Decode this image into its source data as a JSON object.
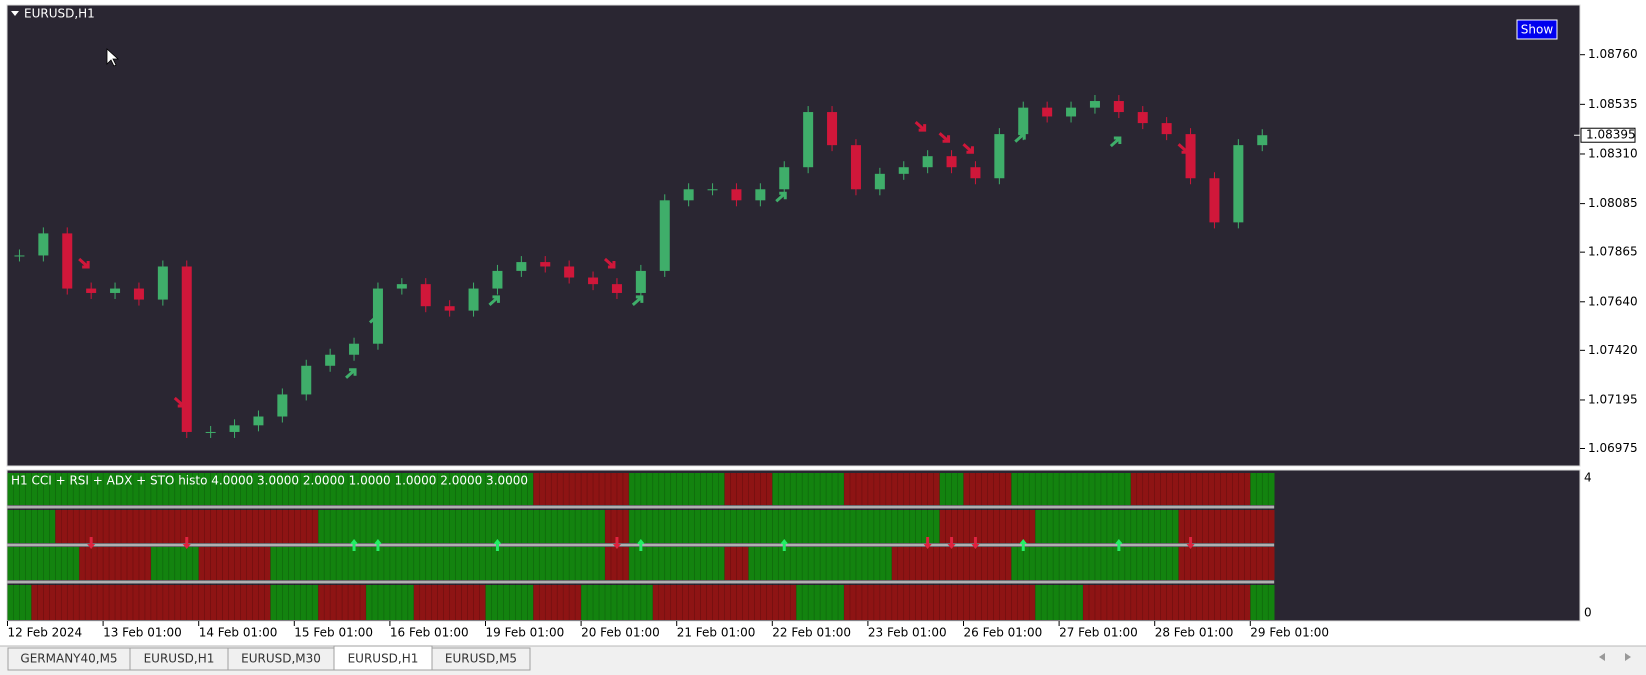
{
  "window": {
    "symbol_title": "EURUSD,H1",
    "button": "Show"
  },
  "price_axis": {
    "ticks": [
      {
        "value": 1.0876,
        "label": "1.08760"
      },
      1.08535,
      {
        "value": 1.0831,
        "label": "1.08310"
      },
      1.08085,
      1.07865,
      {
        "value": 1.0764,
        "label": "1.07640"
      },
      {
        "value": 1.0742,
        "label": "1.07420"
      },
      1.07195,
      1.06975
    ],
    "current": 1.08395
  },
  "candles": {
    "up_color": "#3fae6a",
    "down_color": "#d0173a",
    "closes": [
      1.0785,
      1.0795,
      1.077,
      1.0768,
      1.077,
      1.0765,
      1.078,
      1.0705,
      1.0705,
      1.0708,
      1.0712,
      1.0722,
      1.0735,
      1.074,
      1.0745,
      1.077,
      1.0772,
      1.0762,
      1.076,
      1.077,
      1.0778,
      1.0782,
      1.078,
      1.0775,
      1.0772,
      1.0768,
      1.0778,
      1.081,
      1.0815,
      1.0815,
      1.081,
      1.0815,
      1.0825,
      1.085,
      1.0835,
      1.0815,
      1.0822,
      1.0825,
      1.083,
      1.0825,
      1.082,
      1.084,
      1.0852,
      1.0848,
      1.0852,
      1.0855,
      1.085,
      1.0845,
      1.084,
      1.082,
      1.08,
      1.0835,
      1.08395
    ]
  },
  "signals": [
    {
      "bar": 3,
      "dir": "down"
    },
    {
      "bar": 7,
      "dir": "down"
    },
    {
      "bar": 14,
      "dir": "up"
    },
    {
      "bar": 15,
      "dir": "up"
    },
    {
      "bar": 20,
      "dir": "up"
    },
    {
      "bar": 25,
      "dir": "down"
    },
    {
      "bar": 26,
      "dir": "up"
    },
    {
      "bar": 32,
      "dir": "up"
    },
    {
      "bar": 38,
      "dir": "down"
    },
    {
      "bar": 39,
      "dir": "down"
    },
    {
      "bar": 40,
      "dir": "down"
    },
    {
      "bar": 42,
      "dir": "up"
    },
    {
      "bar": 46,
      "dir": "up"
    },
    {
      "bar": 49,
      "dir": "down"
    }
  ],
  "indicator": {
    "label": "H1   CCI + RSI + ADX + STO histo 4.0000 3.0000 2.0000 1.0000 1.0000 2.0000 3.0000",
    "scale_max": 4,
    "scale_min": 0,
    "colors": {
      "G": "#13830f",
      "R": "#8e1414"
    },
    "rows": [
      "GGGGGGGGGGGGGGGGGGGGGGRRRRGGGGRRGGGRRRRGRRGGGGGRRRRRG",
      "GGRRRRRRRRRRRGGGGGGGGGGGGRGGGGGGGGGGGGGRRRRGGGGGGRRRR",
      "GGGRRRGGRRRGGGGGGGGGGGGGGRGGGGRGGGGGGRRRRRGGGGGGGRRRR",
      "GRRRRRRRRRRGGRRGGRRRGGRRGGGRRRRRRGGRRRRRRRRGGRRRRRRRG"
    ]
  },
  "time_axis": [
    "12 Feb 2024",
    "13 Feb 01:00",
    "14 Feb 01:00",
    "15 Feb 01:00",
    "16 Feb 01:00",
    "19 Feb 01:00",
    "20 Feb 01:00",
    "21 Feb 01:00",
    "22 Feb 01:00",
    "23 Feb 01:00",
    "26 Feb 01:00",
    "27 Feb 01:00",
    "28 Feb 01:00",
    "29 Feb 01:00"
  ],
  "tabs": [
    {
      "label": "GERMANY40,M5",
      "active": false
    },
    {
      "label": "EURUSD,H1",
      "active": false
    },
    {
      "label": "EURUSD,M30",
      "active": false
    },
    {
      "label": "EURUSD,H1",
      "active": true
    },
    {
      "label": "EURUSD,M5",
      "active": false
    }
  ]
}
